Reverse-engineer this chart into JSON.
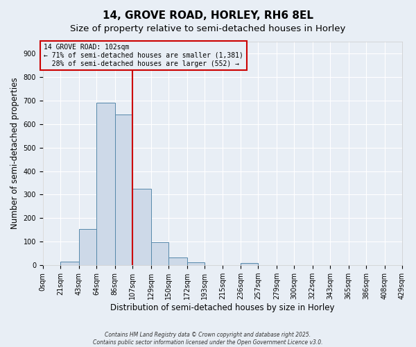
{
  "title": "14, GROVE ROAD, HORLEY, RH6 8EL",
  "subtitle": "Size of property relative to semi-detached houses in Horley",
  "xlabel": "Distribution of semi-detached houses by size in Horley",
  "ylabel": "Number of semi-detached properties",
  "bin_edges": [
    0,
    21,
    43,
    64,
    86,
    107,
    129,
    150,
    172,
    193,
    215,
    236,
    257,
    279,
    300,
    322,
    343,
    365,
    386,
    408,
    429
  ],
  "bar_heights": [
    0,
    15,
    155,
    690,
    640,
    325,
    98,
    32,
    12,
    0,
    0,
    10,
    0,
    0,
    0,
    0,
    0,
    0,
    0,
    0
  ],
  "bar_facecolor": "#cdd9e8",
  "bar_edgecolor": "#5588aa",
  "background_color": "#e8eef5",
  "grid_color": "#ffffff",
  "vline_x": 107,
  "vline_color": "#cc0000",
  "annotation_line1": "14 GROVE ROAD: 102sqm",
  "annotation_line2": "← 71% of semi-detached houses are smaller (1,381)",
  "annotation_line3": "  28% of semi-detached houses are larger (552) →",
  "annotation_box_color": "#cc0000",
  "ylim": [
    0,
    950
  ],
  "yticks": [
    0,
    100,
    200,
    300,
    400,
    500,
    600,
    700,
    800,
    900
  ],
  "title_fontsize": 11,
  "subtitle_fontsize": 9.5,
  "tick_label_fontsize": 7,
  "axis_label_fontsize": 8.5,
  "footer_line1": "Contains HM Land Registry data © Crown copyright and database right 2025.",
  "footer_line2": "Contains public sector information licensed under the Open Government Licence v3.0."
}
